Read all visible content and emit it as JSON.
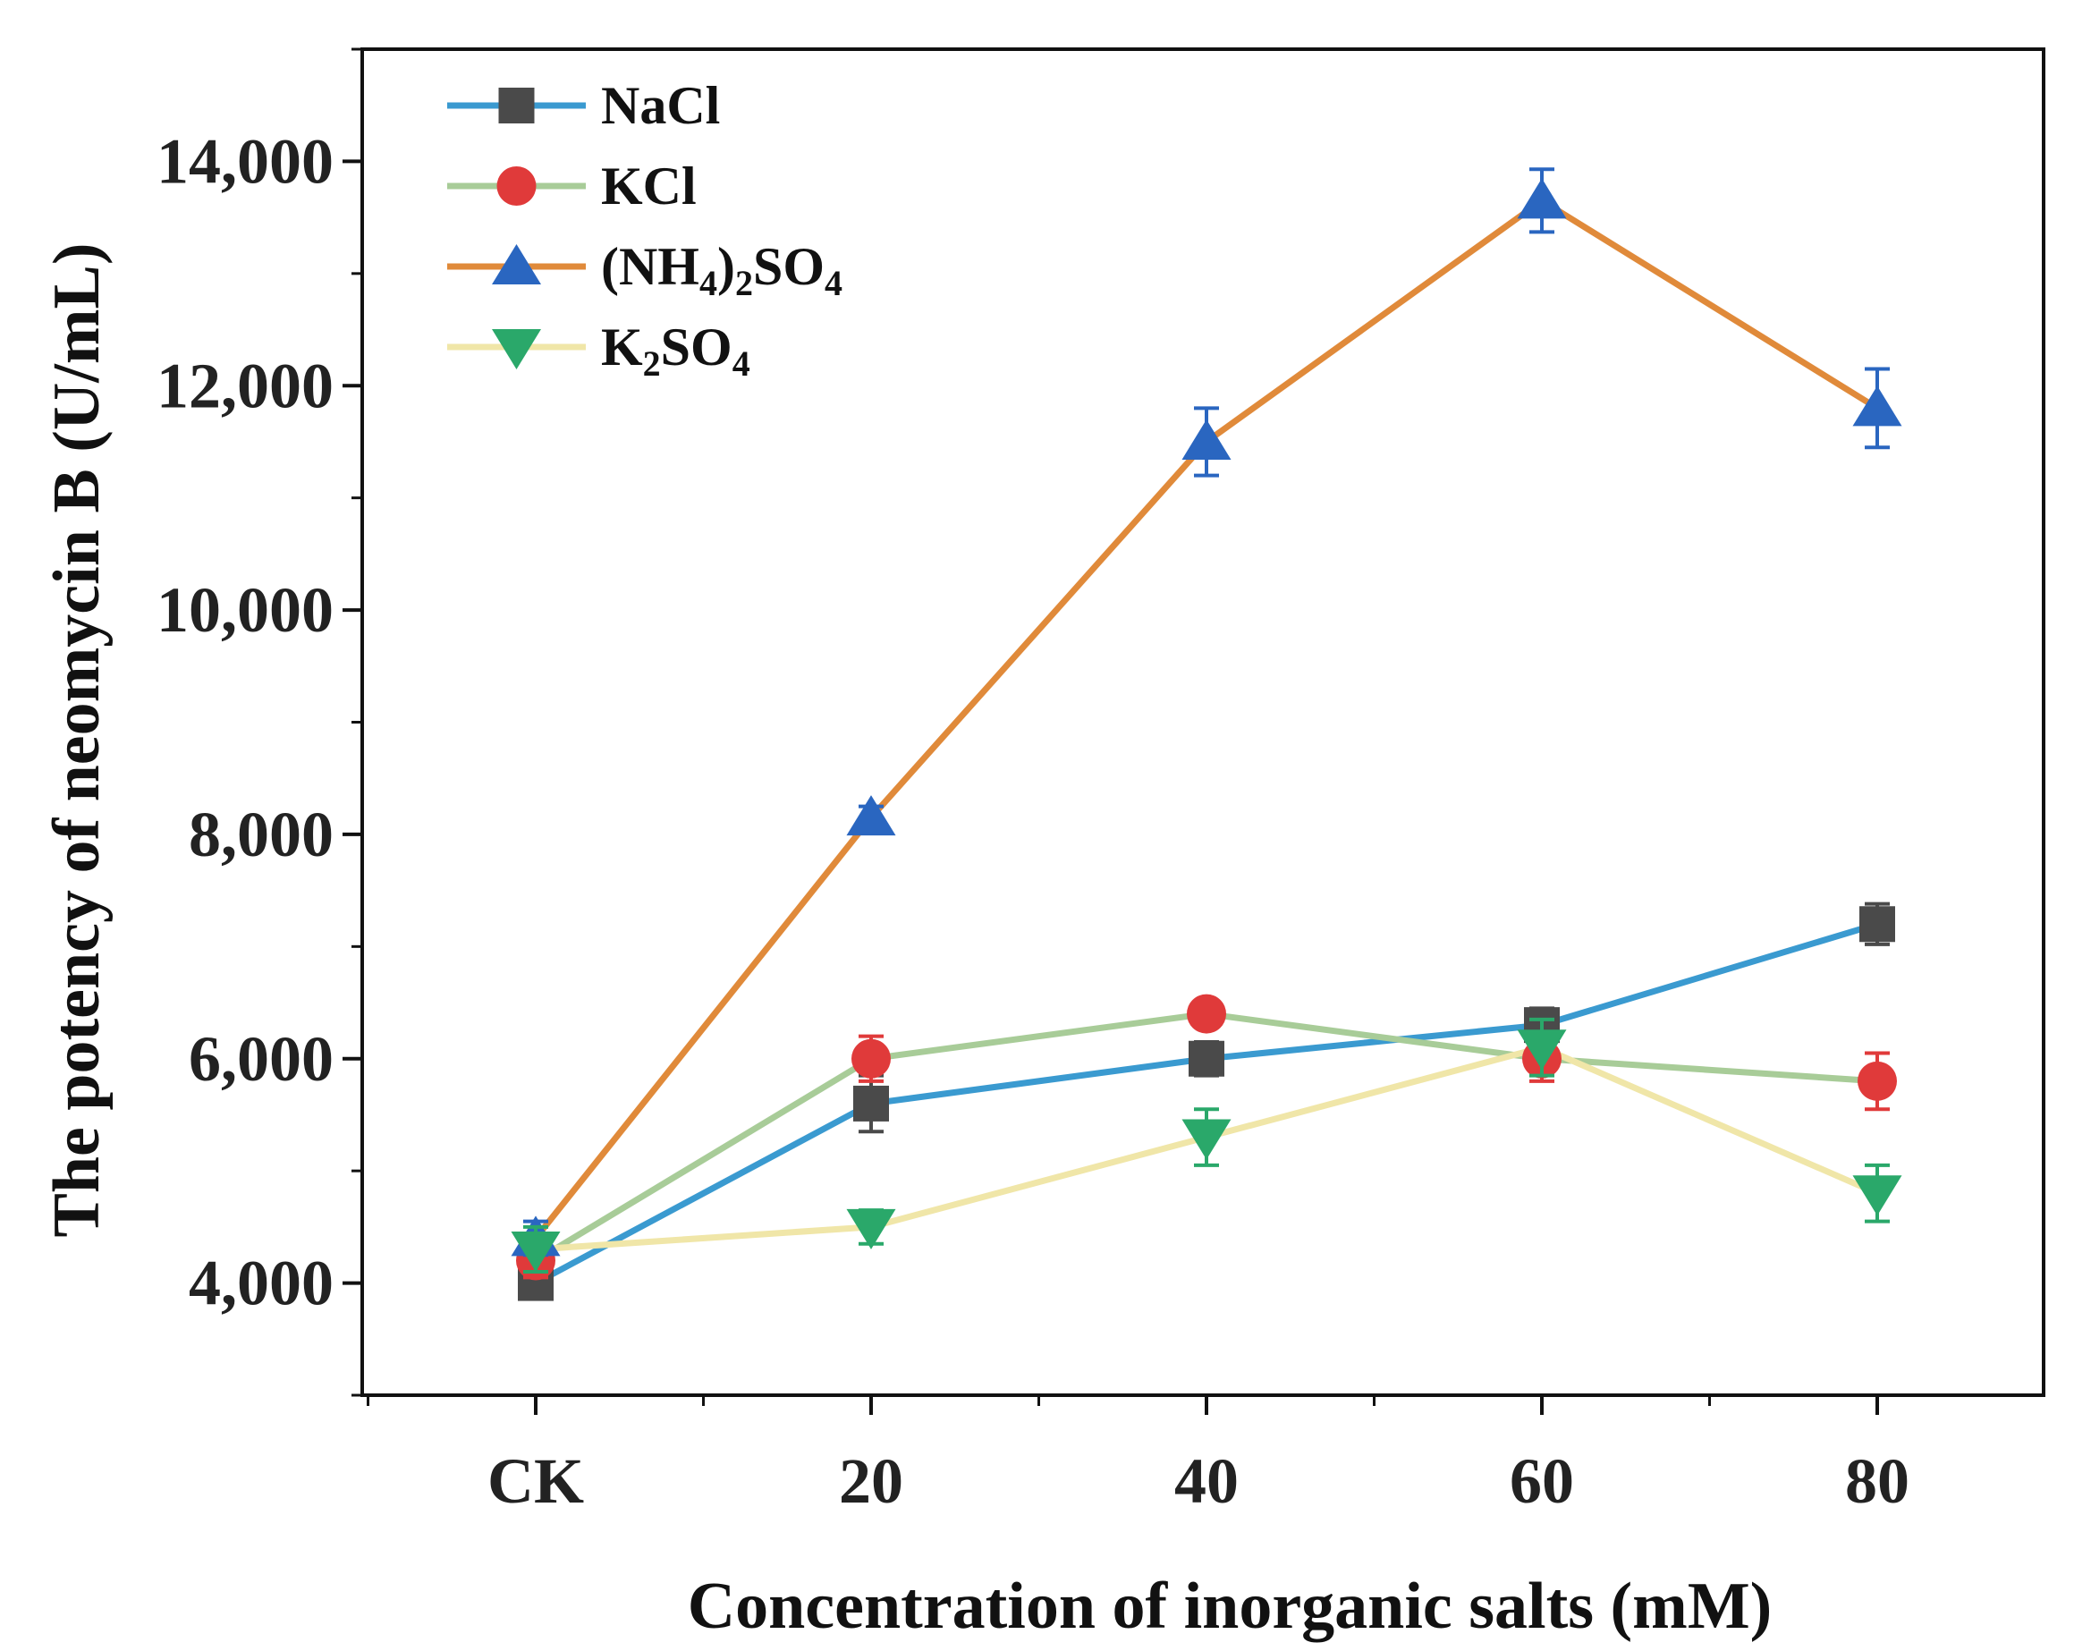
{
  "chart_data": {
    "type": "line",
    "title": "",
    "xlabel": "Concentration of inorganic salts (mM)",
    "ylabel": "The potency of neomycin B (U/mL)",
    "categories": [
      "CK",
      "20",
      "40",
      "60",
      "80"
    ],
    "ylim": [
      3000,
      15000
    ],
    "yticks": [
      4000,
      6000,
      8000,
      10000,
      12000,
      14000
    ],
    "ytick_labels": [
      "4,000",
      "6,000",
      "8,000",
      "10,000",
      "12,000",
      "14,000"
    ],
    "legend_position": "top-left",
    "series": [
      {
        "name": "NaCl",
        "legend_parts": [
          {
            "t": "NaCl",
            "sub": false
          }
        ],
        "line_color": "#3a9ad0",
        "marker": "square",
        "marker_color": "#4a4a4a",
        "values": [
          4000,
          5600,
          6000,
          6300,
          7200
        ],
        "errors": [
          100,
          250,
          150,
          150,
          180
        ]
      },
      {
        "name": "KCl",
        "legend_parts": [
          {
            "t": "KCl",
            "sub": false
          }
        ],
        "line_color": "#a8cc98",
        "marker": "circle",
        "marker_color": "#e03a3a",
        "values": [
          4200,
          6000,
          6400,
          6000,
          5800
        ],
        "errors": [
          150,
          200,
          100,
          200,
          250
        ]
      },
      {
        "name": "(NH4)2SO4",
        "legend_parts": [
          {
            "t": "(NH",
            "sub": false
          },
          {
            "t": "4",
            "sub": true
          },
          {
            "t": ")",
            "sub": false
          },
          {
            "t": "2",
            "sub": true
          },
          {
            "t": "SO",
            "sub": false
          },
          {
            "t": "4",
            "sub": true
          }
        ],
        "line_color": "#e08a3a",
        "marker": "triangle-up",
        "marker_color": "#2a66c0",
        "values": [
          4400,
          8150,
          11500,
          13650,
          11800
        ],
        "errors": [
          150,
          100,
          300,
          280,
          350
        ]
      },
      {
        "name": "K2SO4",
        "legend_parts": [
          {
            "t": "K",
            "sub": false
          },
          {
            "t": "2",
            "sub": true
          },
          {
            "t": "SO",
            "sub": false
          },
          {
            "t": "4",
            "sub": true
          }
        ],
        "line_color": "#f0e6a8",
        "marker": "triangle-down",
        "marker_color": "#2aa86a",
        "values": [
          4300,
          4500,
          5300,
          6100,
          4800
        ],
        "errors": [
          200,
          150,
          250,
          250,
          250
        ]
      }
    ]
  }
}
